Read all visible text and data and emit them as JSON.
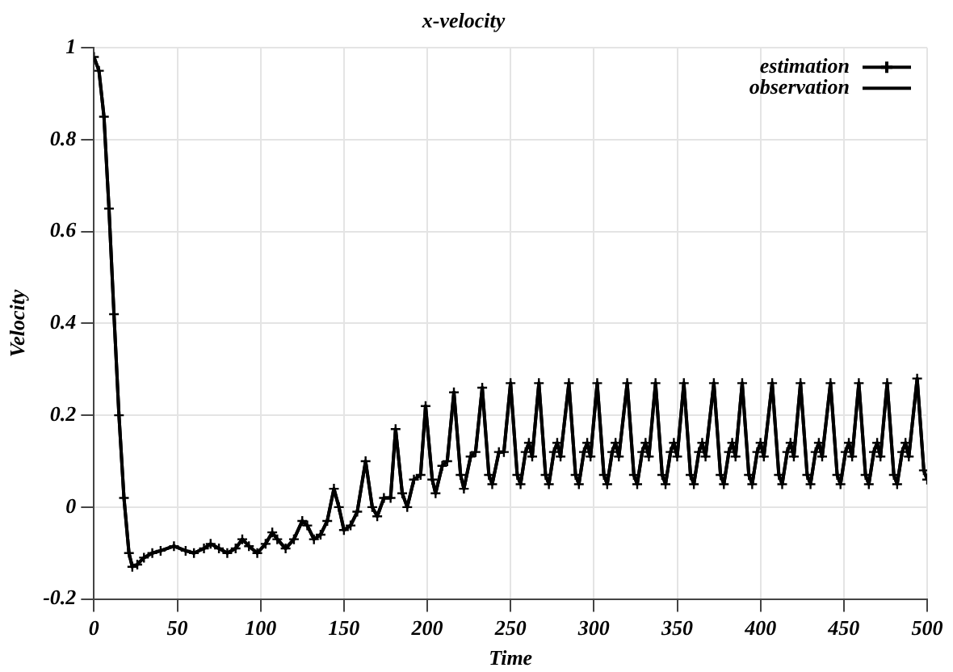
{
  "chart_data": {
    "type": "line",
    "title": "x-velocity",
    "xlabel": "Time",
    "ylabel": "Velocity",
    "x": [
      0,
      3,
      6,
      9,
      12,
      15,
      18,
      21,
      23,
      26,
      30,
      35,
      40,
      48,
      55,
      60,
      66,
      70,
      75,
      80,
      85,
      89,
      93,
      98,
      103,
      107,
      110,
      115,
      120,
      125,
      128,
      132,
      136,
      140,
      144,
      147,
      150,
      154,
      158,
      163,
      167,
      170,
      174,
      178,
      181,
      185,
      188,
      192,
      196,
      199,
      203,
      205,
      209,
      212,
      216,
      220,
      222,
      226,
      229,
      233,
      237,
      239,
      243,
      246,
      250,
      254,
      256,
      259,
      261,
      263,
      267,
      271,
      273,
      276,
      278,
      280,
      285,
      289,
      291,
      294,
      296,
      298,
      302,
      306,
      308,
      311,
      313,
      315,
      320,
      324,
      326,
      329,
      331,
      333,
      337,
      341,
      343,
      346,
      348,
      350,
      354,
      358,
      360,
      363,
      365,
      367,
      372,
      376,
      378,
      381,
      383,
      385,
      389,
      393,
      395,
      398,
      400,
      402,
      407,
      411,
      413,
      416,
      418,
      420,
      424,
      428,
      430,
      433,
      435,
      437,
      442,
      446,
      448,
      451,
      453,
      455,
      459,
      463,
      465,
      468,
      470,
      472,
      476,
      480,
      482,
      485,
      487,
      489,
      494,
      498,
      500
    ],
    "series": [
      {
        "name": "estimation",
        "color": "#000000",
        "marker": "cross",
        "values": [
          0.98,
          0.95,
          0.85,
          0.65,
          0.42,
          0.2,
          0.02,
          -0.1,
          -0.13,
          -0.125,
          -0.11,
          -0.1,
          -0.095,
          -0.085,
          -0.095,
          -0.1,
          -0.09,
          -0.08,
          -0.09,
          -0.1,
          -0.09,
          -0.07,
          -0.085,
          -0.1,
          -0.08,
          -0.055,
          -0.07,
          -0.09,
          -0.07,
          -0.03,
          -0.04,
          -0.07,
          -0.06,
          -0.03,
          0.04,
          0.0,
          -0.05,
          -0.04,
          -0.01,
          0.1,
          0.0,
          -0.02,
          0.02,
          0.02,
          0.17,
          0.03,
          0.0,
          0.06,
          0.07,
          0.22,
          0.06,
          0.03,
          0.09,
          0.1,
          0.25,
          0.07,
          0.04,
          0.11,
          0.12,
          0.26,
          0.07,
          0.05,
          0.12,
          0.12,
          0.27,
          0.07,
          0.05,
          0.12,
          0.14,
          0.11,
          0.27,
          0.07,
          0.05,
          0.12,
          0.14,
          0.11,
          0.27,
          0.07,
          0.05,
          0.12,
          0.14,
          0.11,
          0.27,
          0.07,
          0.05,
          0.12,
          0.14,
          0.11,
          0.27,
          0.07,
          0.05,
          0.12,
          0.14,
          0.11,
          0.27,
          0.07,
          0.05,
          0.12,
          0.14,
          0.11,
          0.27,
          0.07,
          0.05,
          0.12,
          0.14,
          0.11,
          0.27,
          0.07,
          0.05,
          0.12,
          0.14,
          0.11,
          0.27,
          0.07,
          0.05,
          0.12,
          0.14,
          0.11,
          0.27,
          0.07,
          0.05,
          0.12,
          0.14,
          0.11,
          0.27,
          0.07,
          0.05,
          0.12,
          0.14,
          0.11,
          0.27,
          0.07,
          0.05,
          0.12,
          0.14,
          0.11,
          0.27,
          0.07,
          0.05,
          0.12,
          0.14,
          0.11,
          0.27,
          0.07,
          0.05,
          0.12,
          0.14,
          0.11,
          0.28,
          0.08,
          0.06
        ]
      },
      {
        "name": "observation",
        "color": "#000000",
        "marker": "none",
        "values": [
          0.98,
          0.95,
          0.85,
          0.65,
          0.42,
          0.2,
          0.02,
          -0.1,
          -0.13,
          -0.125,
          -0.11,
          -0.1,
          -0.095,
          -0.085,
          -0.095,
          -0.1,
          -0.09,
          -0.08,
          -0.09,
          -0.1,
          -0.09,
          -0.07,
          -0.085,
          -0.1,
          -0.08,
          -0.055,
          -0.07,
          -0.09,
          -0.07,
          -0.03,
          -0.04,
          -0.07,
          -0.06,
          -0.03,
          0.04,
          0.0,
          -0.05,
          -0.04,
          -0.01,
          0.1,
          0.0,
          -0.02,
          0.02,
          0.02,
          0.17,
          0.03,
          0.0,
          0.06,
          0.07,
          0.22,
          0.06,
          0.03,
          0.09,
          0.1,
          0.25,
          0.07,
          0.04,
          0.11,
          0.12,
          0.26,
          0.07,
          0.05,
          0.12,
          0.12,
          0.27,
          0.07,
          0.05,
          0.12,
          0.14,
          0.11,
          0.27,
          0.07,
          0.05,
          0.12,
          0.14,
          0.11,
          0.27,
          0.07,
          0.05,
          0.12,
          0.14,
          0.11,
          0.27,
          0.07,
          0.05,
          0.12,
          0.14,
          0.11,
          0.27,
          0.07,
          0.05,
          0.12,
          0.14,
          0.11,
          0.27,
          0.07,
          0.05,
          0.12,
          0.14,
          0.11,
          0.27,
          0.07,
          0.05,
          0.12,
          0.14,
          0.11,
          0.27,
          0.07,
          0.05,
          0.12,
          0.14,
          0.11,
          0.27,
          0.07,
          0.05,
          0.12,
          0.14,
          0.11,
          0.27,
          0.07,
          0.05,
          0.12,
          0.14,
          0.11,
          0.27,
          0.07,
          0.05,
          0.12,
          0.14,
          0.11,
          0.27,
          0.07,
          0.05,
          0.12,
          0.14,
          0.11,
          0.27,
          0.07,
          0.05,
          0.12,
          0.14,
          0.11,
          0.27,
          0.07,
          0.05,
          0.12,
          0.14,
          0.11,
          0.28,
          0.08,
          0.06
        ]
      }
    ],
    "xlim": [
      0,
      500
    ],
    "xticks": [
      0,
      50,
      100,
      150,
      200,
      250,
      300,
      350,
      400,
      450,
      500
    ],
    "ylim": [
      -0.2,
      1
    ],
    "yticks": [
      -0.2,
      0,
      0.2,
      0.4,
      0.6,
      0.8,
      1
    ],
    "grid": true,
    "legend": "top right",
    "line_style": "solid"
  }
}
